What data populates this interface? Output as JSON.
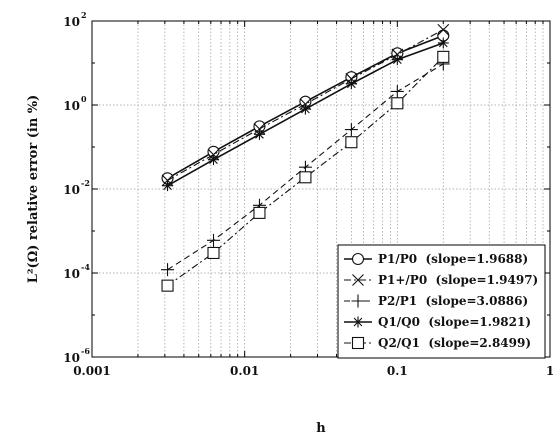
{
  "chart_data": {
    "type": "line",
    "title": "",
    "xlabel": "h",
    "ylabel": "L²(Ω) relative error (in %)",
    "xscale": "log",
    "yscale": "log",
    "xlim": [
      0.001,
      1
    ],
    "ylim": [
      1e-06,
      100
    ],
    "grid": true,
    "legend_position": "bottom-right",
    "x_ticks": [
      "0.001",
      "0.01",
      "0.1",
      "1"
    ],
    "y_ticks": [
      {
        "base": "10",
        "exp": "2",
        "value": 100
      },
      {
        "base": "10",
        "exp": "0",
        "value": 1
      },
      {
        "base": "10",
        "exp": "-2",
        "value": 0.01
      },
      {
        "base": "10",
        "exp": "-4",
        "value": 0.0001
      },
      {
        "base": "10",
        "exp": "-6",
        "value": 1e-06
      }
    ],
    "x": [
      0.003125,
      0.00625,
      0.0125,
      0.025,
      0.05,
      0.1,
      0.2
    ],
    "series": [
      {
        "name": "P1/P0 (slope=1.9688)",
        "marker": "circle",
        "dash": "solid",
        "values": [
          0.018,
          0.077,
          0.31,
          1.2,
          4.6,
          17,
          45
        ]
      },
      {
        "name": "P1+/P0 (slope=1.9497)",
        "marker": "x",
        "dash": "dashdot",
        "values": [
          0.016,
          0.066,
          0.27,
          1.05,
          4.2,
          16,
          62
        ]
      },
      {
        "name": "P2/P1 (slope=3.0886)",
        "marker": "plus",
        "dash": "dashed",
        "values": [
          0.00012,
          0.0006,
          0.0041,
          0.033,
          0.26,
          2.1,
          9.5
        ]
      },
      {
        "name": "Q1/Q0 (slope=1.9821)",
        "marker": "asterisk",
        "dash": "solid",
        "values": [
          0.012,
          0.05,
          0.2,
          0.8,
          3.2,
          12,
          30
        ]
      },
      {
        "name": "Q2/Q1 (slope=2.8499)",
        "marker": "square",
        "dash": "dashdot",
        "values": [
          5e-05,
          0.0003,
          0.0027,
          0.019,
          0.13,
          1.1,
          14
        ]
      }
    ]
  }
}
